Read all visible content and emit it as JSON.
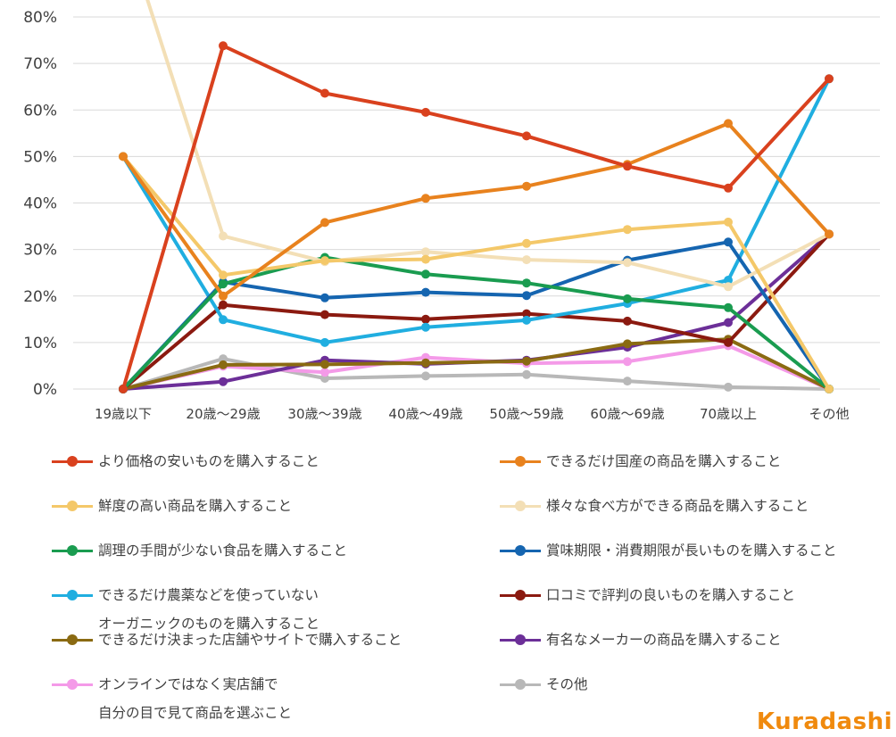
{
  "chart_data": {
    "type": "line",
    "title": "",
    "xlabel": "",
    "ylabel": "",
    "categories": [
      "19歳以下",
      "20歳〜29歳",
      "30歳〜39歳",
      "40歳〜49歳",
      "50歳〜59歳",
      "60歳〜69歳",
      "70歳以上",
      "その他"
    ],
    "ylim": [
      0,
      80
    ],
    "yticks": [
      0,
      10,
      20,
      30,
      40,
      50,
      60,
      70,
      80
    ],
    "ytick_labels": [
      "0%",
      "10%",
      "20%",
      "30%",
      "40%",
      "50%",
      "60%",
      "70%",
      "80%"
    ],
    "grid": "horizontal",
    "legend_position": "bottom",
    "series": [
      {
        "name": "より価格の安いものを購入すること",
        "color": "#d9411e",
        "values": [
          0,
          73.8,
          63.6,
          59.5,
          54.4,
          47.9,
          43.2,
          66.7
        ]
      },
      {
        "name": "できるだけ国産の商品を購入すること",
        "color": "#e8821e",
        "values": [
          50,
          20.0,
          35.8,
          41.0,
          43.6,
          48.3,
          57.1,
          33.3
        ]
      },
      {
        "name": "鮮度の高い商品を購入すること",
        "color": "#f4c869",
        "values": [
          50,
          24.5,
          27.6,
          27.9,
          31.3,
          34.3,
          35.9,
          0
        ]
      },
      {
        "name": "様々な食べ方ができる商品を購入すること",
        "color": "#f3dfb6",
        "values": [
          100,
          32.9,
          27.4,
          29.5,
          27.8,
          27.2,
          22.0,
          33.3
        ]
      },
      {
        "name": "調理の手間が少ない食品を購入すること",
        "color": "#1a9c50",
        "values": [
          0,
          22.6,
          28.3,
          24.7,
          22.8,
          19.4,
          17.5,
          0
        ]
      },
      {
        "name": "賞味期限・消費期限が長いものを購入すること",
        "color": "#1565b0",
        "values": [
          0,
          23.0,
          19.6,
          20.8,
          20.1,
          27.7,
          31.6,
          0
        ]
      },
      {
        "name": "できるだけ農薬などを使っていない\nオーガニックのものを購入すること",
        "color": "#20aee0",
        "values": [
          50,
          14.9,
          10.0,
          13.3,
          14.8,
          18.4,
          23.4,
          66.7
        ]
      },
      {
        "name": "口コミで評判の良いものを購入すること",
        "color": "#8b1a10",
        "values": [
          0,
          18.1,
          16.0,
          15.0,
          16.2,
          14.6,
          10.0,
          33.3
        ]
      },
      {
        "name": "できるだけ決まった店舗やサイトで購入すること",
        "color": "#8a6a12",
        "values": [
          0,
          5.2,
          5.3,
          5.6,
          6.0,
          9.7,
          10.7,
          0
        ]
      },
      {
        "name": "有名なメーカーの商品を購入すること",
        "color": "#6c2f98",
        "values": [
          0,
          1.6,
          6.2,
          5.4,
          6.2,
          9.0,
          14.3,
          33.3
        ]
      },
      {
        "name": "オンラインではなく実店舗で\n自分の目で見て商品を選ぶこと",
        "color": "#f49ae8",
        "values": [
          0,
          4.9,
          3.6,
          6.8,
          5.5,
          5.9,
          9.3,
          0
        ]
      },
      {
        "name": "その他",
        "color": "#b8b8b8",
        "values": [
          0,
          6.5,
          2.3,
          2.8,
          3.1,
          1.7,
          0.4,
          0
        ]
      }
    ]
  },
  "logo": {
    "text": "Kuradashi"
  }
}
